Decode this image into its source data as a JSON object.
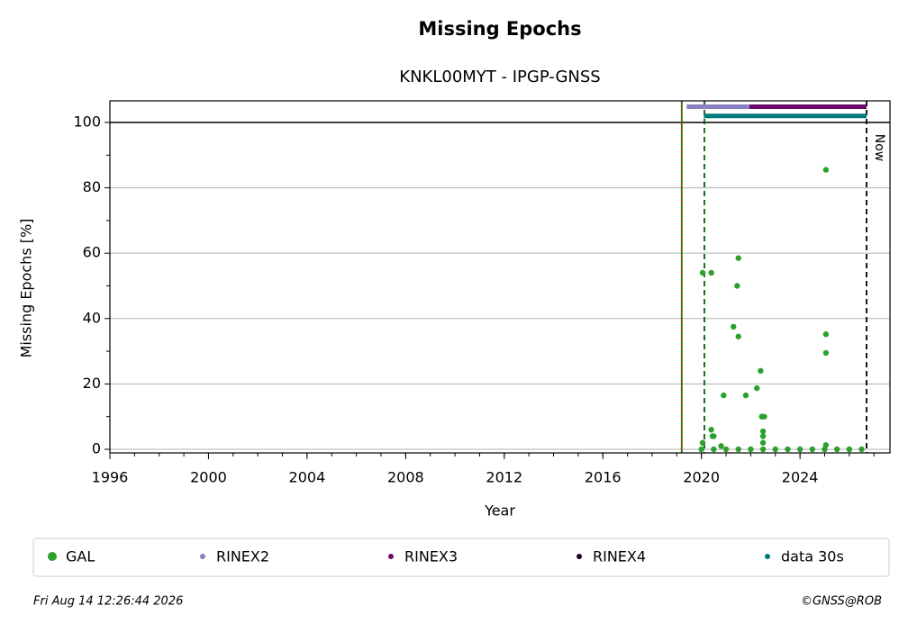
{
  "chart_data": {
    "type": "scatter",
    "title": "Missing Epochs",
    "subtitle": "KNKL00MYT - IPGP-GNSS",
    "xlabel": "Year",
    "ylabel": "Missing Epochs [%]",
    "xlim": [
      1996,
      2027.65
    ],
    "ylim": [
      -1.1,
      106.6
    ],
    "xticks": [
      1996,
      2000,
      2004,
      2008,
      2012,
      2016,
      2020,
      2024
    ],
    "yticks": [
      0,
      20,
      40,
      60,
      80,
      100
    ],
    "grid": true,
    "series": [
      {
        "name": "GAL",
        "color": "#2ca02c",
        "type": "scatter",
        "x": [
          2020.05,
          2020.05,
          2020.4,
          2020.4,
          2020.45,
          2020.5,
          2020.8,
          2020.9,
          2021.3,
          2021.45,
          2021.5,
          2021.5,
          2021.8,
          2022.25,
          2022.4,
          2022.45,
          2022.5,
          2022.5,
          2022.55,
          2022.5,
          2025.05,
          2025.05,
          2025.05,
          2025.05,
          2020.0,
          2020.5,
          2021.0,
          2021.5,
          2022.0,
          2022.5,
          2023.0,
          2023.5,
          2024.0,
          2024.5,
          2025.0,
          2025.5,
          2026.0,
          2026.5
        ],
        "values": [
          2,
          54,
          54,
          6,
          4,
          4,
          1,
          16.5,
          37.5,
          50,
          58.5,
          34.5,
          16.5,
          18.7,
          24,
          10,
          5.5,
          4,
          10,
          2,
          85.5,
          35.2,
          29.5,
          1.3,
          0,
          0,
          0,
          0,
          0,
          0,
          0,
          0,
          0,
          0,
          0,
          0,
          0,
          0
        ]
      },
      {
        "name": "RINEX2",
        "color": "#8a80c0",
        "type": "line",
        "x": [
          2019.4,
          2026.6
        ],
        "values": [
          104.8,
          104.8
        ]
      },
      {
        "name": "RINEX3",
        "color": "#6a0a6b",
        "type": "line",
        "x": [
          2021.95,
          2026.7
        ],
        "values": [
          104.8,
          104.8
        ]
      },
      {
        "name": "RINEX4",
        "color": "#1a0020",
        "type": "line",
        "x": [],
        "values": []
      },
      {
        "name": "data 30s",
        "color": "#007b7b",
        "type": "line",
        "x": [
          2020.1,
          2026.7
        ],
        "values": [
          102,
          102
        ]
      }
    ],
    "hlines": [
      {
        "y": 100,
        "color": "#000000"
      }
    ],
    "vlines": [
      {
        "x": 2019.2,
        "color": "#008000",
        "dash": "none"
      },
      {
        "x": 2019.2,
        "color": "#d62728",
        "dash": "2,3"
      },
      {
        "x": 2020.12,
        "color": "#006400",
        "dash": "6,4"
      },
      {
        "x": 2026.7,
        "color": "#000000",
        "dash": "6,4"
      }
    ],
    "annotations": [
      {
        "text": "Now",
        "x": 2026.7
      }
    ],
    "legend": "bottom"
  },
  "footer": {
    "timestamp": "Fri Aug 14 12:26:44 2026",
    "credit": "©GNSS@ROB"
  }
}
